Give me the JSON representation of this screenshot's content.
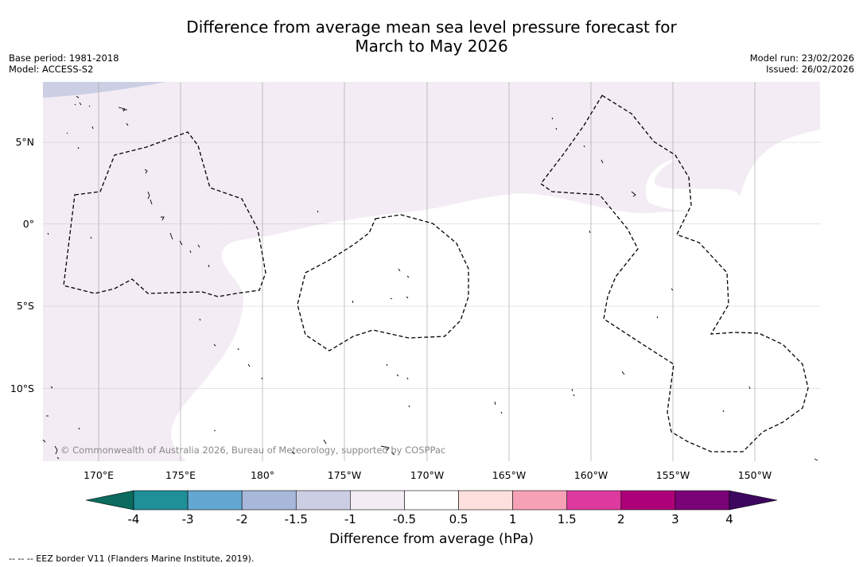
{
  "title": {
    "line1": "Difference from average mean sea level pressure forecast for",
    "line2": "March to May 2026"
  },
  "meta": {
    "base_period": "Base period: 1981-2018",
    "model": "Model: ACCESS-S2",
    "model_run": "Model run: 23/02/2026",
    "issued": "Issued: 26/02/2026"
  },
  "map": {
    "copyright": "© Commonwealth of Australia 2026, Bureau of Meteorology, supported by COSPPac",
    "lat_labels": [
      "5°N",
      "0°",
      "5°S",
      "10°S"
    ],
    "lon_labels": [
      "170°E",
      "175°E",
      "180°",
      "175°W",
      "170°W",
      "165°W",
      "160°W",
      "155°W",
      "150°W"
    ],
    "fills": {
      "minus_0_5_to_minus_1": "#f3ecf4",
      "minus_1_to_minus_1_5": "#cccfe3"
    }
  },
  "colorbar": {
    "title": "Difference from average (hPa)",
    "tick_labels": [
      "-4",
      "-3",
      "-2",
      "-1.5",
      "-1",
      "-0.5",
      "0.5",
      "1",
      "1.5",
      "2",
      "3",
      "4"
    ],
    "low_extend_color": "#0a6b5e",
    "high_extend_color": "#3d0760",
    "bin_colors": [
      "#1f8f98",
      "#63a8d2",
      "#a7b8da",
      "#cccfe3",
      "#f3ecf4",
      "#ffffff",
      "#fde0dd",
      "#f7a1b7",
      "#dd3a9f",
      "#ad0078",
      "#7a0378"
    ]
  },
  "footnote": "--  --  -- EEZ border V11 (Flanders Marine Institute, 2019)."
}
